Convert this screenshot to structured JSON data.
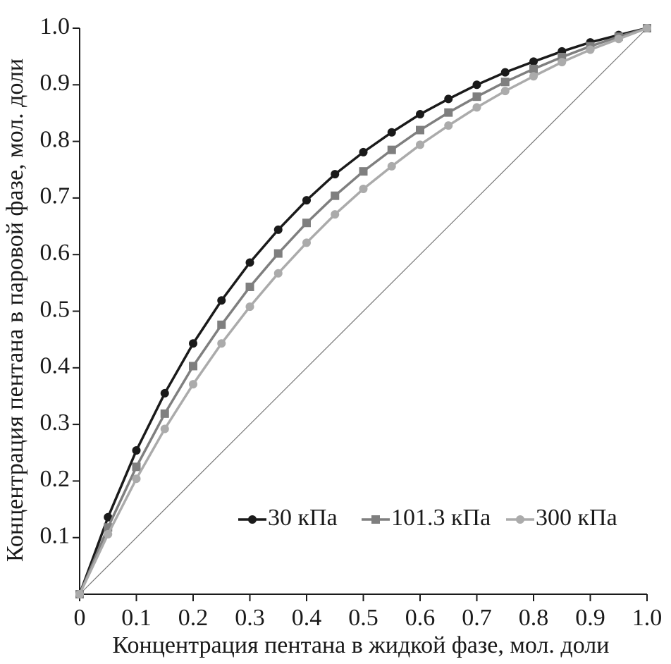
{
  "chart_data": {
    "type": "line",
    "x_label": "Концентрация пентана в жидкой фазе, мол. доли",
    "y_label": "Концентрация пентана в паровой фазе, мол. доли",
    "x": [
      0,
      0.05,
      0.1,
      0.15,
      0.2,
      0.25,
      0.3,
      0.35,
      0.4,
      0.45,
      0.5,
      0.55,
      0.6,
      0.65,
      0.7,
      0.75,
      0.8,
      0.85,
      0.9,
      0.95,
      1
    ],
    "series": [
      {
        "name": "30 кПа",
        "color": "#1a1a1a",
        "marker": "circle",
        "values": [
          0,
          0.136,
          0.254,
          0.355,
          0.443,
          0.519,
          0.586,
          0.644,
          0.696,
          0.742,
          0.781,
          0.816,
          0.848,
          0.875,
          0.9,
          0.922,
          0.941,
          0.959,
          0.975,
          0.988,
          1
        ]
      },
      {
        "name": "101.3 кПа",
        "color": "#7f7f7f",
        "marker": "square",
        "values": [
          0,
          0.118,
          0.225,
          0.319,
          0.403,
          0.476,
          0.543,
          0.602,
          0.656,
          0.704,
          0.747,
          0.785,
          0.82,
          0.851,
          0.879,
          0.905,
          0.928,
          0.949,
          0.968,
          0.985,
          1
        ]
      },
      {
        "name": "300 кПа",
        "color": "#ababab",
        "marker": "circle",
        "values": [
          0,
          0.106,
          0.204,
          0.292,
          0.371,
          0.443,
          0.508,
          0.567,
          0.621,
          0.671,
          0.716,
          0.756,
          0.794,
          0.828,
          0.86,
          0.889,
          0.915,
          0.94,
          0.962,
          0.981,
          1
        ]
      }
    ],
    "xlim": [
      0,
      1
    ],
    "ylim": [
      0,
      1
    ],
    "xticks": [
      0,
      0.1,
      0.2,
      0.3,
      0.4,
      0.5,
      0.6,
      0.7,
      0.8,
      0.9,
      {
        "value": 1,
        "label": "1.0"
      }
    ],
    "yticks": [
      0.1,
      0.2,
      0.3,
      0.4,
      0.5,
      0.6,
      0.7,
      0.8,
      0.9,
      {
        "value": 1,
        "label": "1.0"
      }
    ],
    "legend": "lower right"
  }
}
